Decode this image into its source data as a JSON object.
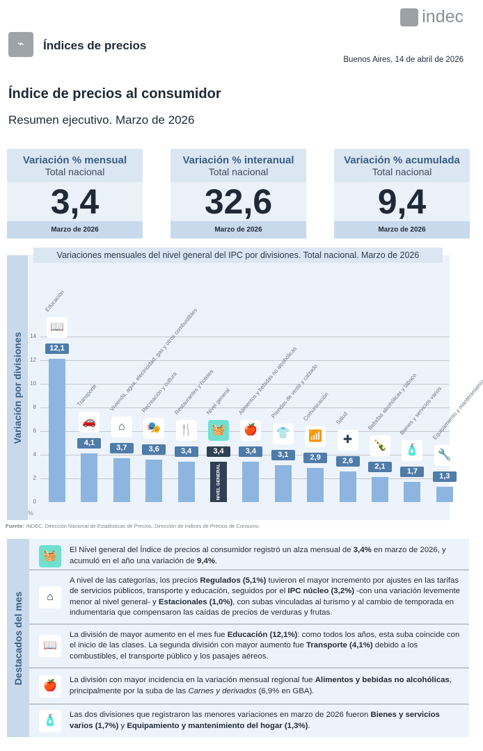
{
  "header": {
    "logo_text": "indec",
    "section_title": "Índices de precios",
    "date": "Buenos Aires, 14 de abril de 2026"
  },
  "title": "Índice de precios al consumidor",
  "subtitle": "Resumen ejecutivo. Marzo de 2026",
  "cards": [
    {
      "title": "Variación % mensual",
      "sub": "Total nacional",
      "value": "3,4",
      "period": "Marzo de 2026"
    },
    {
      "title": "Variación % interanual",
      "sub": "Total nacional",
      "value": "32,6",
      "period": "Marzo de 2026"
    },
    {
      "title": "Variación % acumulada",
      "sub": "Total nacional",
      "value": "9,4",
      "period": "Marzo de 2026"
    }
  ],
  "colors": {
    "bar": "#8db5e0",
    "label": "#4f7ba9",
    "highlight": "#2f3f55",
    "accent": "#6fe0cf"
  },
  "chart_data": {
    "type": "bar",
    "title": "Variaciones mensuales del nivel general del IPC por divisiones. Total nacional. Marzo de 2026",
    "ylabel": "Variación por divisiones",
    "yunit": "%",
    "ylim": [
      0,
      14
    ],
    "yticks": [
      0,
      2,
      4,
      6,
      8,
      10,
      12,
      14
    ],
    "grid": true,
    "categories": [
      "Educación",
      "Transporte",
      "Vivienda, agua, electricidad, gas y otros combustibles",
      "Recreación y cultura",
      "Restaurantes y hoteles",
      "Nivel general",
      "Alimentos y bebidas no alcohólicas",
      "Prendas de vestir y calzado",
      "Comunicación",
      "Salud",
      "Bebidas alcohólicas y tabaco",
      "Bienes y servicios varios",
      "Equipamiento y mantenimiento del hogar"
    ],
    "values": [
      12.1,
      4.1,
      3.7,
      3.6,
      3.4,
      3.4,
      3.4,
      3.1,
      2.9,
      2.6,
      2.1,
      1.7,
      1.3
    ],
    "labels": [
      "12,1",
      "4,1",
      "3,7",
      "3,6",
      "3,4",
      "3,4",
      "3,4",
      "3,1",
      "2,9",
      "2,6",
      "2,1",
      "1,7",
      "1,3"
    ],
    "icons": [
      "book-icon",
      "car-icon",
      "house-energy-icon",
      "theater-masks-icon",
      "restaurant-hotel-icon",
      "basket-icon",
      "food-icon",
      "shirt-icon",
      "wifi-icon",
      "plus-icon",
      "bottle-icon",
      "spray-comb-icon",
      "tools-icon"
    ],
    "glyphs": [
      "📖",
      "🚗",
      "⌂",
      "🎭",
      "🍴",
      "🧺",
      "🍎",
      "👕",
      "📶",
      "✚",
      "🍾",
      "🧴",
      "🔧"
    ],
    "general_label": "NIVEL GENERAL"
  },
  "source": {
    "label": "Fuente:",
    "text": " INDEC, Dirección Nacional de Estadísticas de Precios. Dirección de Índices de Precios de Consumo."
  },
  "highlights": {
    "title": "Destacados del mes",
    "rows": [
      {
        "icon": "basket-icon",
        "glyph": "🧺",
        "segments": [
          {
            "t": "El Nivel general del Índice de precios al consumidor registró un alza mensual de "
          },
          {
            "t": "3,4%",
            "b": true
          },
          {
            "t": " en marzo de 2026, y acumuló en el año una variación de "
          },
          {
            "t": "9,4%",
            "b": true
          },
          {
            "t": "."
          }
        ]
      },
      {
        "icon": "house-energy-icon",
        "glyph": "⌂",
        "segments": [
          {
            "t": "A nivel de las categorías, los precios "
          },
          {
            "t": "Regulados (5,1%)",
            "b": true
          },
          {
            "t": " tuvieron el mayor incremento por ajustes en las tarifas de servicios públicos, transporte y educación, seguidos por el "
          },
          {
            "t": "IPC núcleo (3,2%)",
            "b": true
          },
          {
            "t": " -con una variación levemente menor al nivel general- y "
          },
          {
            "t": "Estacionales (1,0%)",
            "b": true
          },
          {
            "t": ", con subas vinculadas al turismo y al cambio de temporada en indumentaria que compensaron las caídas de precios de verduras y frutas."
          }
        ]
      },
      {
        "icon": "book-icon",
        "glyph": "📖",
        "segments": [
          {
            "t": "La división de mayor aumento en el mes fue "
          },
          {
            "t": "Educación (12,1%)",
            "b": true
          },
          {
            "t": ": como todos los años, esta suba coincide con el inicio de las clases. La segunda división con mayor aumento fue "
          },
          {
            "t": "Transporte (4,1%)",
            "b": true
          },
          {
            "t": " debido a los combustibles, el transporte público y los pasajes aéreos."
          }
        ]
      },
      {
        "icon": "food-icon",
        "glyph": "🍎",
        "segments": [
          {
            "t": "La división con mayor incidencia en la variación mensual regional fue "
          },
          {
            "t": "Alimentos y bebidas no alcohólicas",
            "b": true
          },
          {
            "t": ", principalmente por la suba de las "
          },
          {
            "t": "Carnes y derivados",
            "i": true
          },
          {
            "t": " (6,9% en GBA)."
          }
        ]
      },
      {
        "icon": "spray-comb-icon",
        "glyph": "🧴",
        "segments": [
          {
            "t": "Las dos divisiones que registraron las menores variaciones en marzo de 2026 fueron "
          },
          {
            "t": "Bienes y servicios varios (1,7%)",
            "b": true
          },
          {
            "t": " y "
          },
          {
            "t": "Equipamiento y mantenimiento del hogar (1,3%)",
            "b": true
          },
          {
            "t": "."
          }
        ]
      }
    ]
  }
}
